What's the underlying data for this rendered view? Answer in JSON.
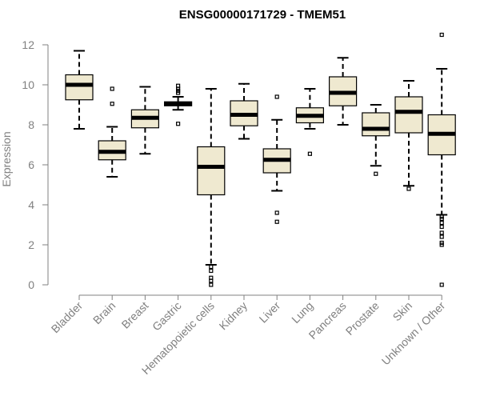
{
  "chart_data": {
    "type": "box",
    "title": "ENSG00000171729 - TMEM51",
    "ylabel": "Expression",
    "xlabel": "",
    "ylim": [
      0,
      12
    ],
    "yticks": [
      0,
      2,
      4,
      6,
      8,
      10,
      12
    ],
    "grid": false,
    "legend": "none",
    "colors": {
      "box_fill": "#efe9d0",
      "box_stroke": "#000000",
      "median": "#000000",
      "axis": "#808080"
    },
    "categories": [
      "Bladder",
      "Brain",
      "Breast",
      "Gastric",
      "Hematopoietic cells",
      "Kidney",
      "Liver",
      "Lung",
      "Pancreas",
      "Prostate",
      "Skin",
      "Unknown / Other"
    ],
    "boxes": [
      {
        "category": "Bladder",
        "whisker_low": 7.8,
        "q1": 9.25,
        "median": 10.0,
        "q3": 10.5,
        "whisker_high": 11.7,
        "outliers": []
      },
      {
        "category": "Brain",
        "whisker_low": 5.4,
        "q1": 6.25,
        "median": 6.65,
        "q3": 7.2,
        "whisker_high": 7.9,
        "outliers": [
          9.05,
          9.8
        ]
      },
      {
        "category": "Breast",
        "whisker_low": 6.55,
        "q1": 7.85,
        "median": 8.35,
        "q3": 8.75,
        "whisker_high": 9.9,
        "outliers": []
      },
      {
        "category": "Gastric",
        "whisker_low": 8.75,
        "q1": 8.95,
        "median": 9.05,
        "q3": 9.15,
        "whisker_high": 9.4,
        "outliers": [
          8.05,
          9.6,
          9.7,
          9.8,
          9.95
        ]
      },
      {
        "category": "Hematopoietic cells",
        "whisker_low": 1.0,
        "q1": 4.5,
        "median": 5.9,
        "q3": 6.9,
        "whisker_high": 9.8,
        "outliers": [
          0.0,
          0.2,
          0.35,
          0.7,
          0.9
        ]
      },
      {
        "category": "Kidney",
        "whisker_low": 7.3,
        "q1": 7.95,
        "median": 8.5,
        "q3": 9.2,
        "whisker_high": 10.05,
        "outliers": []
      },
      {
        "category": "Liver",
        "whisker_low": 4.7,
        "q1": 5.6,
        "median": 6.25,
        "q3": 6.8,
        "whisker_high": 8.25,
        "outliers": [
          3.15,
          3.6,
          9.4
        ]
      },
      {
        "category": "Lung",
        "whisker_low": 7.8,
        "q1": 8.1,
        "median": 8.45,
        "q3": 8.85,
        "whisker_high": 9.8,
        "outliers": [
          6.55
        ]
      },
      {
        "category": "Pancreas",
        "whisker_low": 8.0,
        "q1": 8.95,
        "median": 9.6,
        "q3": 10.4,
        "whisker_high": 11.35,
        "outliers": []
      },
      {
        "category": "Prostate",
        "whisker_low": 5.95,
        "q1": 7.45,
        "median": 7.8,
        "q3": 8.6,
        "whisker_high": 9.0,
        "outliers": [
          5.55
        ]
      },
      {
        "category": "Skin",
        "whisker_low": 4.95,
        "q1": 7.6,
        "median": 8.65,
        "q3": 9.4,
        "whisker_high": 10.2,
        "outliers": [
          4.8
        ]
      },
      {
        "category": "Unknown / Other",
        "whisker_low": 3.5,
        "q1": 6.5,
        "median": 7.55,
        "q3": 8.5,
        "whisker_high": 10.8,
        "outliers": [
          0.0,
          2.0,
          2.1,
          2.4,
          2.6,
          2.9,
          3.1,
          3.3,
          3.4,
          12.5
        ]
      }
    ]
  }
}
